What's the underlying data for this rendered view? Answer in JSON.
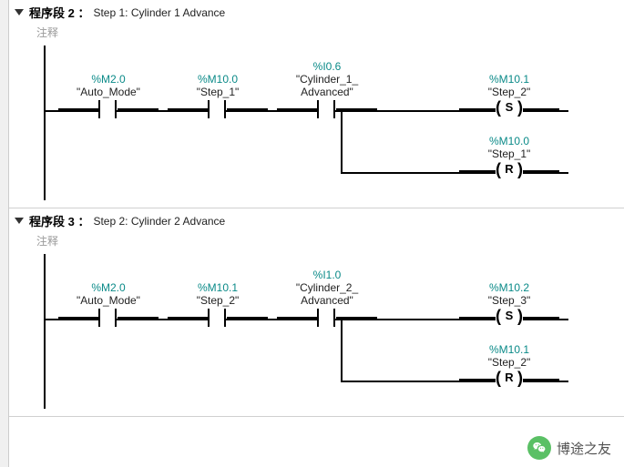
{
  "colors": {
    "address": "#0a8a88",
    "text": "#000000",
    "comment": "#9a9a9a",
    "wire": "#000000",
    "wechat": "#3eb64b"
  },
  "labels": {
    "comment": "注释",
    "netPrefix": "程序段"
  },
  "networks": [
    {
      "number": "2",
      "title": "Step 1: Cylinder 1 Advance",
      "contacts": [
        {
          "addr": "%M2.0",
          "sym": "\"Auto_Mode\""
        },
        {
          "addr": "%M10.0",
          "sym": "\"Step_1\""
        },
        {
          "addr": "%I0.6",
          "sym": "\"Cylinder_1_\nAdvanced\""
        }
      ],
      "coils": [
        {
          "addr": "%M10.1",
          "sym": "\"Step_2\"",
          "type": "S"
        },
        {
          "addr": "%M10.0",
          "sym": "\"Step_1\"",
          "type": "R"
        }
      ]
    },
    {
      "number": "3",
      "title": "Step 2: Cylinder 2 Advance",
      "contacts": [
        {
          "addr": "%M2.0",
          "sym": "\"Auto_Mode\""
        },
        {
          "addr": "%M10.1",
          "sym": "\"Step_2\""
        },
        {
          "addr": "%I1.0",
          "sym": "\"Cylinder_2_\nAdvanced\""
        }
      ],
      "coils": [
        {
          "addr": "%M10.2",
          "sym": "\"Step_3\"",
          "type": "S"
        },
        {
          "addr": "%M10.1",
          "sym": "\"Step_2\"",
          "type": "R"
        }
      ]
    }
  ],
  "watermark": "博途之友",
  "layout": {
    "contactXs": [
      30,
      150,
      270
    ],
    "coilX": 470,
    "rungY": 62,
    "branchY": 130,
    "branchStartX": 340,
    "rightEndX": 590
  }
}
